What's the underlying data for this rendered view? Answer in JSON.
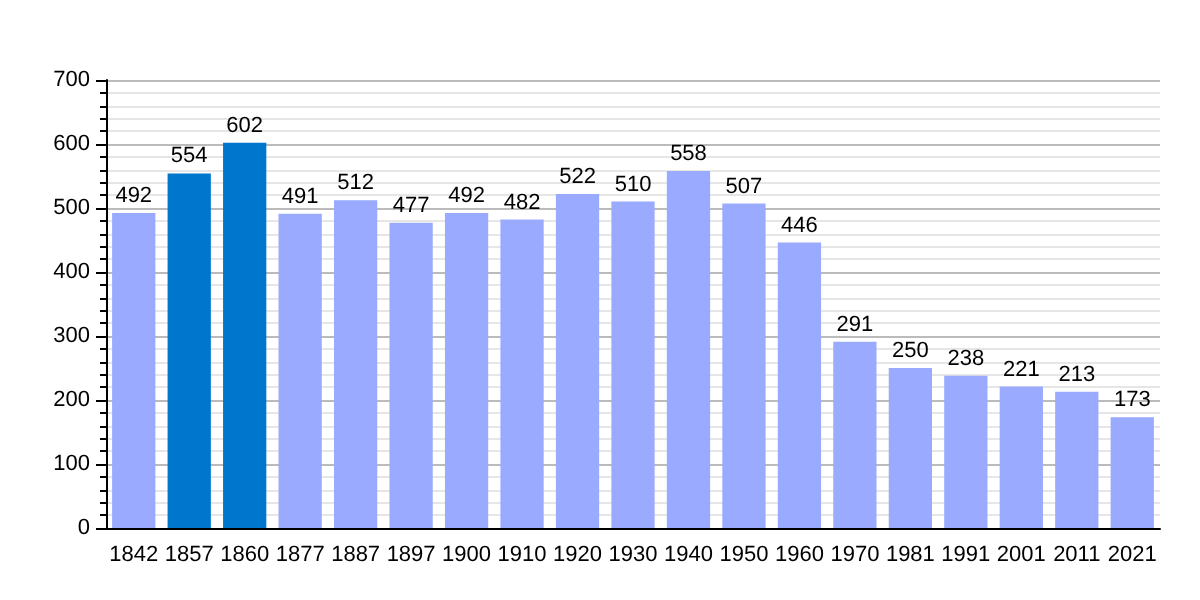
{
  "chart_data": {
    "type": "bar",
    "categories": [
      "1842",
      "1857",
      "1860",
      "1877",
      "1887",
      "1897",
      "1900",
      "1910",
      "1920",
      "1930",
      "1940",
      "1950",
      "1960",
      "1970",
      "1981",
      "1991",
      "2001",
      "2011",
      "2021"
    ],
    "values": [
      492,
      554,
      602,
      491,
      512,
      477,
      492,
      482,
      522,
      510,
      558,
      507,
      446,
      291,
      250,
      238,
      221,
      213,
      173
    ],
    "colors": [
      "#99aaff",
      "#0077cc",
      "#0077cc",
      "#99aaff",
      "#99aaff",
      "#99aaff",
      "#99aaff",
      "#99aaff",
      "#99aaff",
      "#99aaff",
      "#99aaff",
      "#99aaff",
      "#99aaff",
      "#99aaff",
      "#99aaff",
      "#99aaff",
      "#99aaff",
      "#99aaff",
      "#99aaff"
    ],
    "ylim": [
      0,
      700
    ],
    "yticks": [
      0,
      100,
      200,
      300,
      400,
      500,
      600,
      700
    ],
    "grid": "y",
    "data_labels": true
  }
}
